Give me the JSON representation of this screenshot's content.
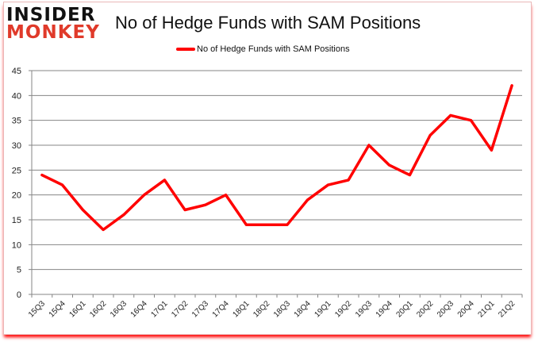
{
  "header": {
    "logo_top": "INSIDER",
    "logo_bottom": "MONKEY",
    "title": "No of Hedge Funds with SAM Positions"
  },
  "legend": {
    "label": "No of Hedge Funds with SAM Positions",
    "color": "#ff0000"
  },
  "chart_data": {
    "type": "line",
    "title": "No of Hedge Funds with SAM Positions",
    "xlabel": "",
    "ylabel": "",
    "ylim": [
      0,
      45
    ],
    "yticks": [
      0,
      5,
      10,
      15,
      20,
      25,
      30,
      35,
      40,
      45
    ],
    "grid": true,
    "legend_position": "top",
    "categories": [
      "15Q3",
      "15Q4",
      "16Q1",
      "16Q2",
      "16Q3",
      "16Q4",
      "17Q1",
      "17Q2",
      "17Q3",
      "17Q4",
      "18Q1",
      "18Q2",
      "18Q3",
      "18Q4",
      "19Q1",
      "19Q2",
      "19Q3",
      "19Q4",
      "20Q1",
      "20Q2",
      "20Q3",
      "20Q4",
      "21Q1",
      "21Q2"
    ],
    "series": [
      {
        "name": "No of Hedge Funds with SAM Positions",
        "color": "#ff0000",
        "values": [
          24,
          22,
          17,
          13,
          16,
          20,
          23,
          17,
          18,
          20,
          14,
          14,
          14,
          19,
          22,
          23,
          30,
          26,
          24,
          32,
          36,
          35,
          29,
          42
        ]
      }
    ]
  }
}
